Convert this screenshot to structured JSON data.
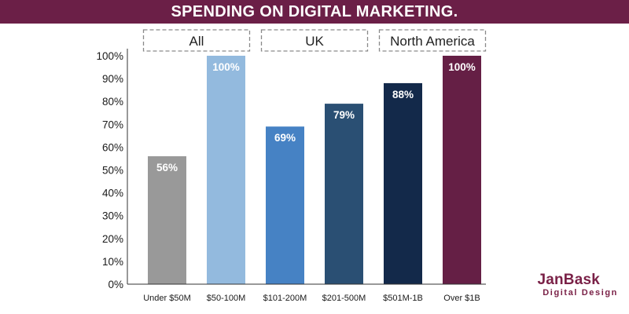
{
  "colors": {
    "title_band": "#6b1f47",
    "axis": "#333333",
    "dashed_box": "#8a8a8a"
  },
  "logo": {
    "name": "JanBask",
    "subtitle": "Digital Design"
  },
  "chart_data": {
    "type": "bar",
    "title": "SPENDING ON DIGITAL MARKETING.",
    "xlabel": "",
    "ylabel": "",
    "ylim": [
      0,
      100
    ],
    "yticks": [
      "0%",
      "10%",
      "20%",
      "30%",
      "40%",
      "50%",
      "60%",
      "70%",
      "80%",
      "90%",
      "100%"
    ],
    "grid": false,
    "categories": [
      "Under $50M",
      "$50-100M",
      "$101-200M",
      "$201-500M",
      "$501M-1B",
      "Over $1B"
    ],
    "values": [
      56,
      100,
      69,
      79,
      88,
      100
    ],
    "value_labels": [
      "56%",
      "100%",
      "69%",
      "79%",
      "88%",
      "100%"
    ],
    "bar_colors": [
      "#999999",
      "#93bade",
      "#4682c4",
      "#2a4f73",
      "#13294a",
      "#651f45"
    ],
    "groups": [
      {
        "label": "All",
        "categories": [
          "Under $50M",
          "$50-100M"
        ]
      },
      {
        "label": "UK",
        "categories": [
          "$101-200M",
          "$201-500M"
        ]
      },
      {
        "label": "North America",
        "categories": [
          "$501M-1B",
          "Over $1B"
        ]
      }
    ]
  }
}
